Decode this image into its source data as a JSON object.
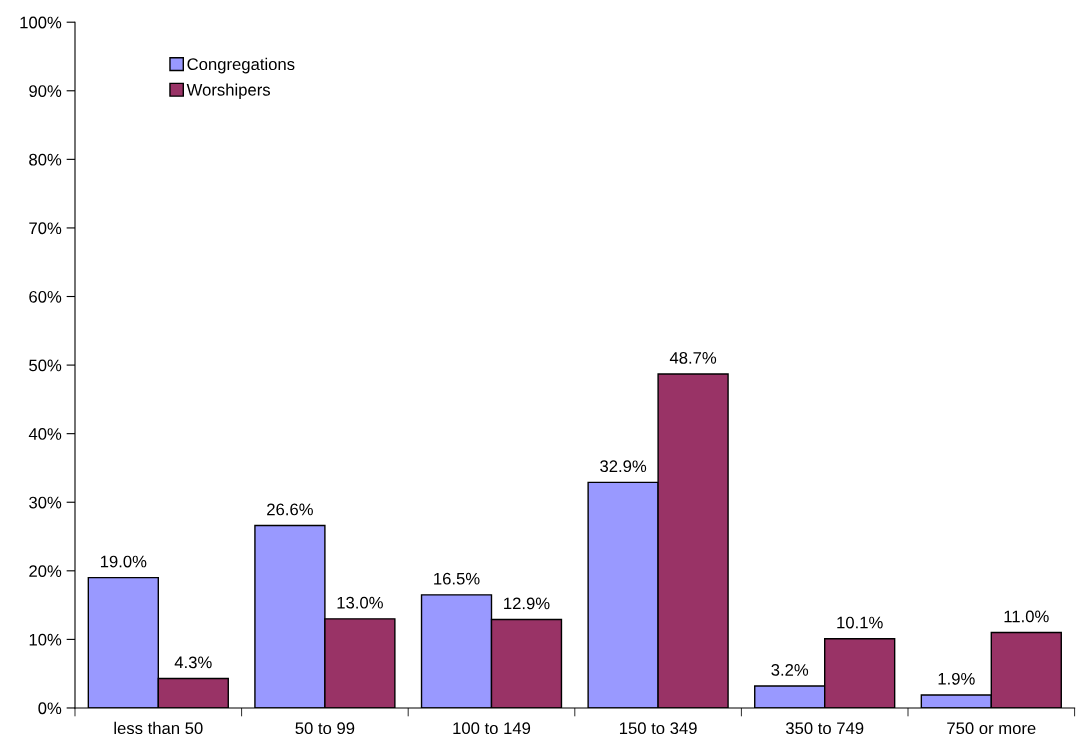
{
  "chart_data": {
    "type": "bar",
    "categories": [
      "less than 50",
      "50 to 99",
      "100 to 149",
      "150 to 349",
      "350 to 749",
      "750 or more"
    ],
    "series": [
      {
        "name": "Congregations",
        "color": "#9999ff",
        "values": [
          19.0,
          26.6,
          16.5,
          32.9,
          3.2,
          1.9
        ],
        "value_labels": [
          "19.0%",
          "26.6%",
          "16.5%",
          "32.9%",
          "3.2%",
          "1.9%"
        ]
      },
      {
        "name": "Worshipers",
        "color": "#993366",
        "values": [
          4.3,
          13.0,
          12.9,
          48.7,
          10.1,
          11.0
        ],
        "value_labels": [
          "4.3%",
          "13.0%",
          "12.9%",
          "48.7%",
          "10.1%",
          "11.0%"
        ]
      }
    ],
    "ylim": [
      0,
      100
    ],
    "yticks": [
      {
        "value": 0,
        "label": "0%"
      },
      {
        "value": 10,
        "label": "10%"
      },
      {
        "value": 20,
        "label": "20%"
      },
      {
        "value": 30,
        "label": "30%"
      },
      {
        "value": 40,
        "label": "40%"
      },
      {
        "value": 50,
        "label": "50%"
      },
      {
        "value": 60,
        "label": "60%"
      },
      {
        "value": 70,
        "label": "70%"
      },
      {
        "value": 80,
        "label": "80%"
      },
      {
        "value": 90,
        "label": "90%"
      },
      {
        "value": 100,
        "label": "100%"
      }
    ],
    "grid": false,
    "legend": "top left"
  }
}
